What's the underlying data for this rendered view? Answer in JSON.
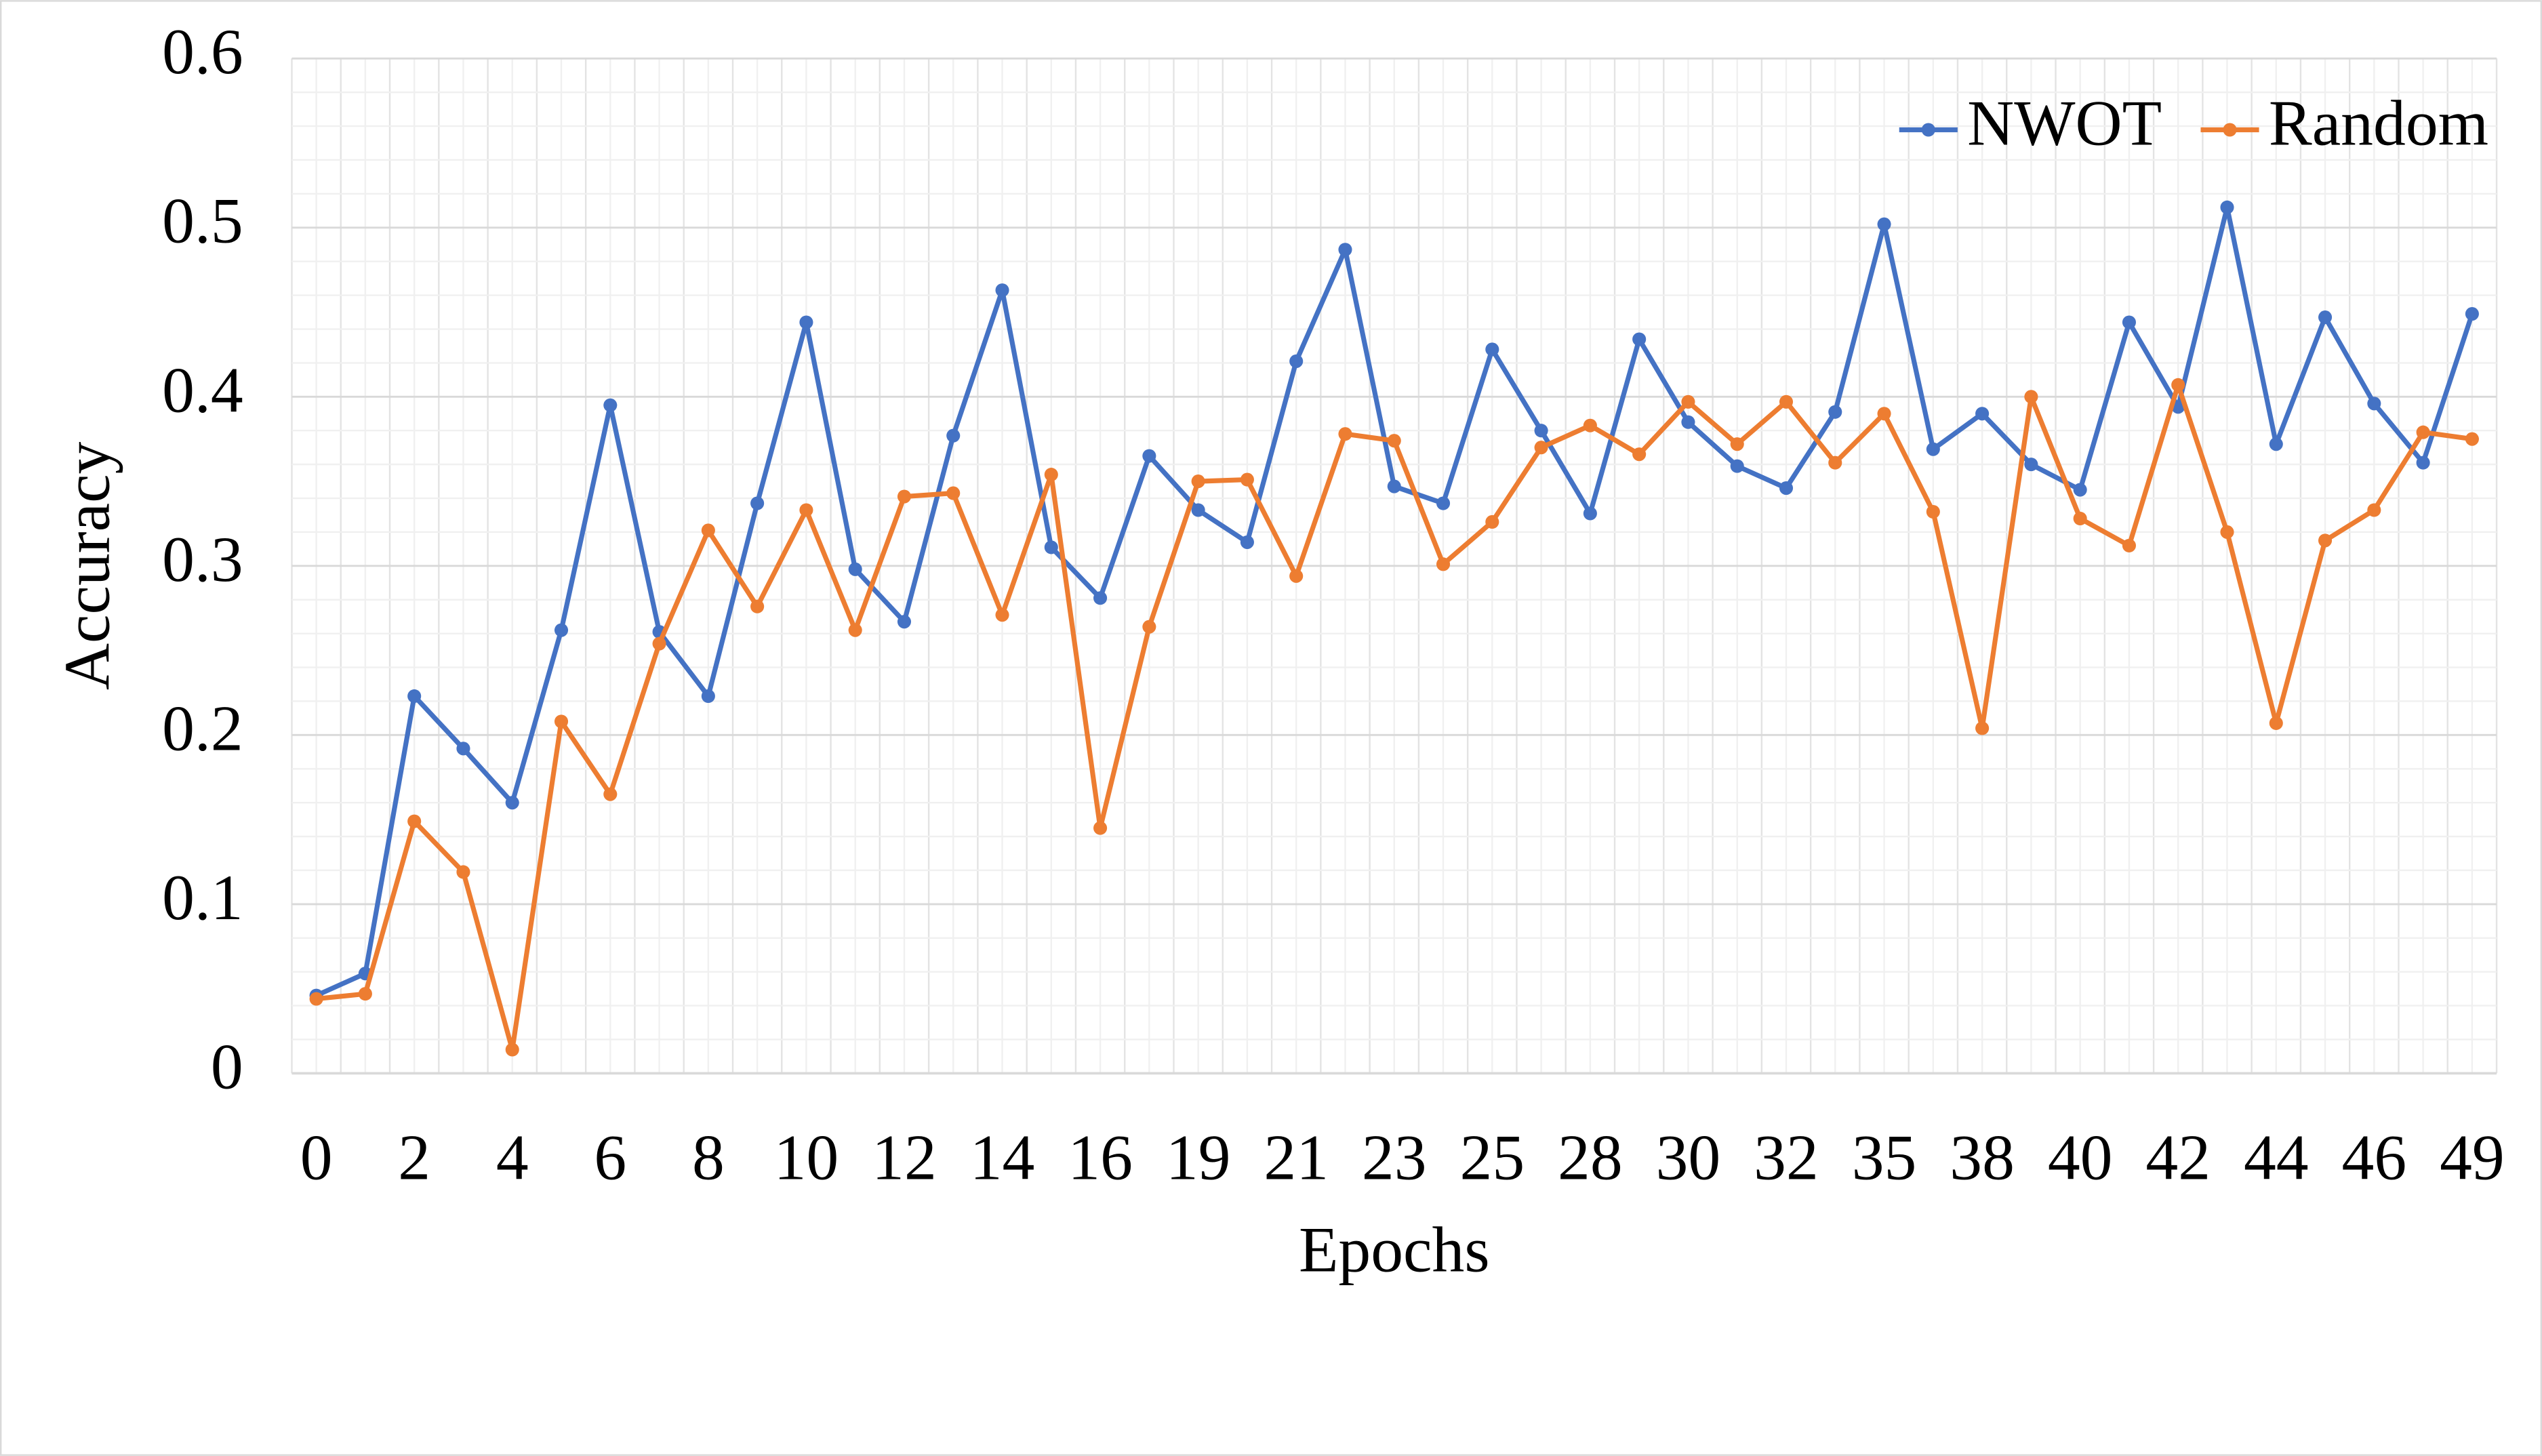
{
  "chart_data": {
    "type": "line",
    "x_label": "Epochs",
    "y_label": "Accuracy",
    "categories": [
      "0",
      null,
      "2",
      null,
      "4",
      null,
      "6",
      null,
      "8",
      null,
      "10",
      null,
      "12",
      null,
      "14",
      null,
      "16",
      null,
      "19",
      null,
      "21",
      null,
      "23",
      null,
      "25",
      null,
      "28",
      null,
      "30",
      null,
      "32",
      null,
      "35",
      null,
      "38",
      null,
      "40",
      null,
      "42",
      null,
      "44",
      null,
      "46",
      null,
      "49"
    ],
    "series": [
      {
        "name": "NWOT",
        "color": "#4472c4",
        "values": [
          0.046,
          0.059,
          0.223,
          0.192,
          0.16,
          0.262,
          0.395,
          0.261,
          0.223,
          0.337,
          0.444,
          0.298,
          0.267,
          0.377,
          0.463,
          0.311,
          0.281,
          0.365,
          0.333,
          0.314,
          0.421,
          0.487,
          0.347,
          0.337,
          0.428,
          0.38,
          0.331,
          0.434,
          0.385,
          0.359,
          0.346,
          0.391,
          0.502,
          0.369,
          0.39,
          0.36,
          0.345,
          0.444,
          0.394,
          0.512,
          0.372,
          0.447,
          0.396,
          0.361,
          0.449
        ]
      },
      {
        "name": "Random",
        "color": "#ed7d31",
        "values": [
          0.044,
          0.047,
          0.149,
          0.119,
          0.014,
          0.208,
          0.165,
          0.254,
          0.321,
          0.276,
          0.333,
          0.262,
          0.341,
          0.343,
          0.271,
          0.354,
          0.145,
          0.264,
          0.35,
          0.351,
          0.294,
          0.378,
          0.374,
          0.301,
          0.326,
          0.37,
          0.383,
          0.366,
          0.397,
          0.372,
          0.397,
          0.361,
          0.39,
          0.332,
          0.204,
          0.4,
          0.328,
          0.312,
          0.407,
          0.32,
          0.207,
          0.315,
          0.333,
          0.379,
          0.375
        ]
      }
    ],
    "ylim": [
      0,
      0.6
    ],
    "yticks": [
      0,
      0.1,
      0.2,
      0.3,
      0.4,
      0.5,
      0.6
    ],
    "grid": true,
    "legend": "top-right"
  }
}
